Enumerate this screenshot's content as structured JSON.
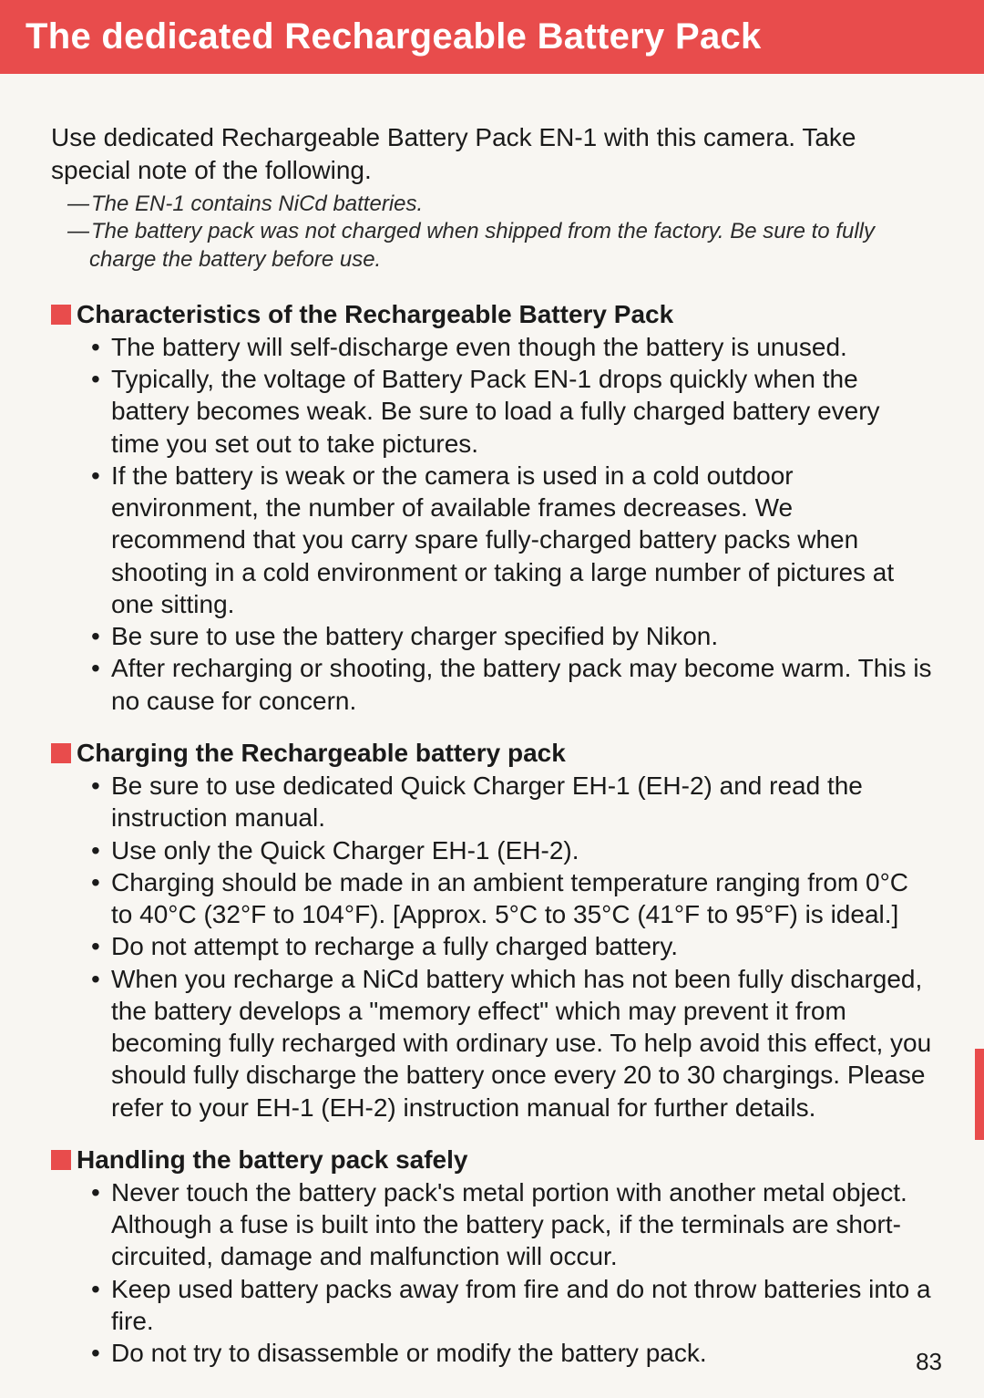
{
  "banner": {
    "title": "The dedicated Rechargeable Battery Pack"
  },
  "intro": "Use dedicated Rechargeable Battery Pack EN-1 with this camera. Take special note of the following.",
  "notes": [
    "The EN-1 contains NiCd batteries.",
    "The battery pack was not charged when shipped from the factory. Be sure to fully charge the battery before use."
  ],
  "sections": [
    {
      "title": "Characteristics of the Rechargeable Battery Pack",
      "bullets": [
        "The battery will self-discharge even though the battery is unused.",
        "Typically, the voltage of Battery Pack EN-1 drops quickly when the battery becomes weak. Be sure to load a fully charged battery every time you set out to take pictures.",
        "If the battery is weak or the camera is used in a cold outdoor environment, the number of available frames decreases. We recommend that you carry spare fully-charged battery packs when shooting in a cold environment or taking a large number of pictures at one sitting.",
        "Be sure to use the battery charger specified by Nikon.",
        "After recharging or shooting, the battery pack may become warm. This is no cause for concern."
      ]
    },
    {
      "title": "Charging the Rechargeable battery pack",
      "bullets": [
        "Be sure to use dedicated Quick Charger EH-1 (EH-2) and read the instruction manual.",
        "Use only the Quick Charger EH-1 (EH-2).",
        "Charging should be made in an ambient temperature ranging from 0°C to 40°C (32°F to 104°F). [Approx. 5°C to 35°C (41°F to 95°F) is ideal.]",
        "Do not attempt to recharge a fully charged battery.",
        "When you recharge a NiCd battery which has not been fully discharged, the battery develops a \"memory effect\" which may prevent it from becoming fully recharged with ordinary use. To help avoid this effect, you should fully discharge the battery once every 20 to 30 chargings. Please refer to your EH-1 (EH-2) instruction manual for further details."
      ]
    },
    {
      "title": "Handling the battery pack safely",
      "bullets": [
        "Never touch the battery pack's metal portion with another metal object. Although a fuse is built into the battery pack, if the terminals are short-circuited, damage and malfunction will occur.",
        "Keep used battery packs away from fire and do not throw batteries into a fire.",
        "Do not try to disassemble or modify the battery pack."
      ]
    }
  ],
  "pageNumber": "83",
  "colors": {
    "accent": "#e84c4c",
    "background": "#f8f6f2",
    "text": "#1a1a1a"
  },
  "typography": {
    "body_fontsize": 28,
    "title_fontsize": 40,
    "note_fontsize": 24
  }
}
